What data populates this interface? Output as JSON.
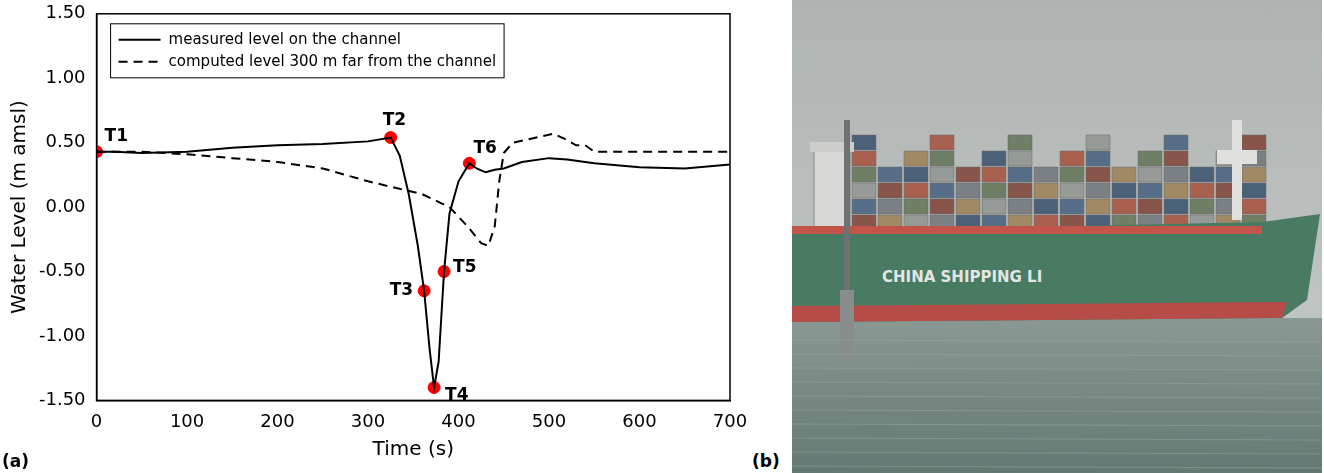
{
  "chart_data": {
    "type": "line",
    "panel_label": "(a)",
    "x_label": "Time (s)",
    "y_label": "Water Level (m amsl)",
    "xlim": [
      0,
      700
    ],
    "xticks": [
      0,
      100,
      200,
      300,
      400,
      500,
      600,
      700
    ],
    "ylim": [
      -1.5,
      1.5
    ],
    "yticks": [
      {
        "value": -1.5,
        "label": "-1.50"
      },
      {
        "value": -1.0,
        "label": "-1.00"
      },
      {
        "value": -0.5,
        "label": "-0.50"
      },
      {
        "value": 0.0,
        "label": "0.00"
      },
      {
        "value": 0.5,
        "label": "0.50"
      },
      {
        "value": 1.0,
        "label": "1.00"
      },
      {
        "value": 1.5,
        "label": "1.50"
      }
    ],
    "grid": false,
    "legend": "upper left",
    "series": [
      {
        "name": "measured level on the channel",
        "color": "#000000",
        "line_style": "solid",
        "x": [
          0,
          20,
          50,
          100,
          150,
          200,
          250,
          300,
          325,
          335,
          345,
          355,
          362,
          368,
          373,
          378,
          384,
          390,
          400,
          412,
          420,
          430,
          440,
          450,
          470,
          500,
          520,
          550,
          600,
          650,
          700
        ],
        "values": [
          0.43,
          0.43,
          0.42,
          0.43,
          0.46,
          0.48,
          0.49,
          0.51,
          0.54,
          0.4,
          0.1,
          -0.3,
          -0.65,
          -1.1,
          -1.4,
          -1.2,
          -0.5,
          -0.05,
          0.2,
          0.34,
          0.3,
          0.27,
          0.29,
          0.3,
          0.35,
          0.38,
          0.37,
          0.34,
          0.31,
          0.3,
          0.33
        ]
      },
      {
        "name": "computed level 300 m far from the channel",
        "color": "#000000",
        "line_style": "dashed",
        "x": [
          0,
          50,
          100,
          150,
          200,
          250,
          300,
          330,
          360,
          390,
          410,
          425,
          433,
          440,
          445,
          450,
          460,
          480,
          505,
          520,
          530,
          540,
          550,
          560,
          700
        ],
        "values": [
          0.43,
          0.43,
          0.41,
          0.38,
          0.35,
          0.3,
          0.2,
          0.15,
          0.1,
          0.0,
          -0.15,
          -0.28,
          -0.3,
          -0.15,
          0.2,
          0.42,
          0.5,
          0.53,
          0.57,
          0.52,
          0.48,
          0.48,
          0.43,
          0.43,
          0.43
        ]
      }
    ],
    "annotations": {
      "color": "#ff0000",
      "marker": "circle",
      "points": [
        {
          "label": "T1",
          "x": 0,
          "y": 0.43
        },
        {
          "label": "T2",
          "x": 325,
          "y": 0.54
        },
        {
          "label": "T3",
          "x": 362,
          "y": -0.65
        },
        {
          "label": "T4",
          "x": 373,
          "y": -1.4
        },
        {
          "label": "T5",
          "x": 384,
          "y": -0.5
        },
        {
          "label": "T6",
          "x": 412,
          "y": 0.34
        }
      ]
    }
  },
  "photo": {
    "panel_label": "(b)",
    "hull_text": "CHINA SHIPPING LI"
  }
}
